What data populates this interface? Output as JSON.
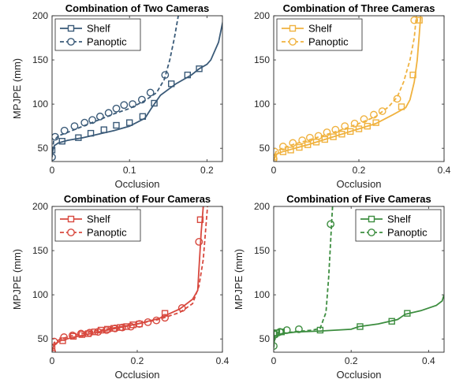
{
  "chart_data": [
    {
      "type": "line",
      "title": "Combination of Two Cameras",
      "xlabel": "Occlusion",
      "ylabel": "MPJPE (mm)",
      "xlim": [
        0,
        0.22
      ],
      "ylim": [
        35,
        200
      ],
      "xticks": [
        0,
        0.1,
        0.2
      ],
      "xtick_labels": [
        "0",
        "0.1",
        "0.2"
      ],
      "yticks": [
        50,
        100,
        150,
        200
      ],
      "ytick_labels": [
        "50",
        "100",
        "150",
        "200"
      ],
      "color": "#3a5a78",
      "legend": "top-left",
      "series": [
        {
          "name": "Shelf",
          "style": "solid",
          "marker": "square",
          "points": [
            [
              0,
              40
            ],
            [
              0.001,
              48
            ],
            [
              0.003,
              53
            ],
            [
              0.008,
              56
            ],
            [
              0.02,
              59
            ],
            [
              0.04,
              62
            ],
            [
              0.06,
              66
            ],
            [
              0.08,
              70
            ],
            [
              0.1,
              75
            ],
            [
              0.12,
              84
            ],
            [
              0.128,
              95
            ],
            [
              0.14,
              110
            ],
            [
              0.16,
              123
            ],
            [
              0.18,
              133
            ],
            [
              0.19,
              140
            ],
            [
              0.2,
              145
            ],
            [
              0.205,
              150
            ],
            [
              0.215,
              170
            ],
            [
              0.222,
              200
            ]
          ],
          "marker_points": [
            [
              0,
              48
            ],
            [
              0.013,
              58
            ],
            [
              0.034,
              62
            ],
            [
              0.05,
              67
            ],
            [
              0.067,
              71
            ],
            [
              0.083,
              76
            ],
            [
              0.1,
              79
            ],
            [
              0.117,
              86
            ],
            [
              0.132,
              101
            ],
            [
              0.154,
              123
            ],
            [
              0.175,
              133
            ],
            [
              0.19,
              140
            ]
          ]
        },
        {
          "name": "Panoptic",
          "style": "dashed",
          "marker": "circle",
          "points": [
            [
              0,
              40
            ],
            [
              0.002,
              58
            ],
            [
              0.008,
              64
            ],
            [
              0.02,
              68
            ],
            [
              0.04,
              75
            ],
            [
              0.06,
              82
            ],
            [
              0.08,
              89
            ],
            [
              0.1,
              95
            ],
            [
              0.12,
              104
            ],
            [
              0.135,
              113
            ],
            [
              0.145,
              128
            ],
            [
              0.152,
              150
            ],
            [
              0.158,
              175
            ],
            [
              0.163,
              200
            ]
          ],
          "marker_points": [
            [
              0,
              40
            ],
            [
              0.004,
              63
            ],
            [
              0.016,
              70
            ],
            [
              0.029,
              75
            ],
            [
              0.042,
              79
            ],
            [
              0.052,
              82
            ],
            [
              0.062,
              86
            ],
            [
              0.073,
              90
            ],
            [
              0.083,
              95
            ],
            [
              0.093,
              99
            ],
            [
              0.104,
              100
            ],
            [
              0.116,
              105
            ],
            [
              0.127,
              113
            ],
            [
              0.146,
              133
            ]
          ]
        }
      ]
    },
    {
      "type": "line",
      "title": "Combination of Three Cameras",
      "xlabel": "Occlusion",
      "ylabel": "",
      "xlim": [
        0,
        0.4
      ],
      "ylim": [
        35,
        200
      ],
      "xticks": [
        0,
        0.2,
        0.4
      ],
      "xtick_labels": [
        "0",
        "0.2",
        "0.4"
      ],
      "yticks": [
        50,
        100,
        150,
        200
      ],
      "ytick_labels": [
        "50",
        "100",
        "150",
        "200"
      ],
      "color": "#f0b23f",
      "legend": "top-left",
      "series": [
        {
          "name": "Shelf",
          "style": "solid",
          "marker": "square",
          "points": [
            [
              0,
              36
            ],
            [
              0.005,
              43
            ],
            [
              0.02,
              46
            ],
            [
              0.05,
              50
            ],
            [
              0.08,
              54
            ],
            [
              0.12,
              60
            ],
            [
              0.16,
              66
            ],
            [
              0.2,
              72
            ],
            [
              0.24,
              78
            ],
            [
              0.28,
              88
            ],
            [
              0.31,
              96
            ],
            [
              0.32,
              105
            ],
            [
              0.33,
              125
            ],
            [
              0.337,
              150
            ],
            [
              0.342,
              180
            ],
            [
              0.345,
              200
            ]
          ],
          "marker_points": [
            [
              0,
              40
            ],
            [
              0.022,
              46
            ],
            [
              0.04,
              48
            ],
            [
              0.06,
              51
            ],
            [
              0.08,
              54
            ],
            [
              0.1,
              57
            ],
            [
              0.12,
              60
            ],
            [
              0.14,
              63
            ],
            [
              0.16,
              66
            ],
            [
              0.18,
              69
            ],
            [
              0.2,
              72
            ],
            [
              0.22,
              75
            ],
            [
              0.24,
              79
            ],
            [
              0.3,
              97
            ],
            [
              0.327,
              133
            ],
            [
              0.342,
              195
            ]
          ]
        },
        {
          "name": "Panoptic",
          "style": "dashed",
          "marker": "circle",
          "points": [
            [
              0,
              36
            ],
            [
              0.005,
              46
            ],
            [
              0.02,
              50
            ],
            [
              0.05,
              55
            ],
            [
              0.08,
              59
            ],
            [
              0.12,
              65
            ],
            [
              0.16,
              71
            ],
            [
              0.2,
              78
            ],
            [
              0.24,
              86
            ],
            [
              0.27,
              97
            ],
            [
              0.29,
              108
            ],
            [
              0.305,
              125
            ],
            [
              0.32,
              150
            ],
            [
              0.33,
              175
            ],
            [
              0.335,
              200
            ]
          ],
          "marker_points": [
            [
              0,
              38
            ],
            [
              0.003,
              46
            ],
            [
              0.022,
              52
            ],
            [
              0.045,
              56
            ],
            [
              0.067,
              59
            ],
            [
              0.085,
              62
            ],
            [
              0.105,
              64
            ],
            [
              0.125,
              68
            ],
            [
              0.145,
              71
            ],
            [
              0.167,
              75
            ],
            [
              0.19,
              78
            ],
            [
              0.212,
              83
            ],
            [
              0.235,
              88
            ],
            [
              0.255,
              92
            ],
            [
              0.29,
              106
            ],
            [
              0.33,
              195
            ]
          ]
        }
      ]
    },
    {
      "type": "line",
      "title": "Combination of Four Cameras",
      "xlabel": "Occlusion",
      "ylabel": "MPJPE (mm)",
      "xlim": [
        0,
        0.4
      ],
      "ylim": [
        35,
        200
      ],
      "xticks": [
        0,
        0.2,
        0.4
      ],
      "xtick_labels": [
        "0",
        "0.2",
        "0.4"
      ],
      "yticks": [
        50,
        100,
        150,
        200
      ],
      "ytick_labels": [
        "50",
        "100",
        "150",
        "200"
      ],
      "color": "#d8493f",
      "legend": "top-left",
      "series": [
        {
          "name": "Shelf",
          "style": "solid",
          "marker": "square",
          "points": [
            [
              0,
              36
            ],
            [
              0.005,
              44
            ],
            [
              0.02,
              48
            ],
            [
              0.05,
              52
            ],
            [
              0.1,
              57
            ],
            [
              0.15,
              62
            ],
            [
              0.2,
              67
            ],
            [
              0.25,
              73
            ],
            [
              0.3,
              84
            ],
            [
              0.33,
              95
            ],
            [
              0.342,
              105
            ],
            [
              0.345,
              130
            ],
            [
              0.35,
              170
            ],
            [
              0.355,
              200
            ]
          ],
          "marker_points": [
            [
              0,
              40
            ],
            [
              0.025,
              48
            ],
            [
              0.05,
              53
            ],
            [
              0.07,
              55
            ],
            [
              0.085,
              56
            ],
            [
              0.1,
              58
            ],
            [
              0.115,
              60
            ],
            [
              0.13,
              61
            ],
            [
              0.145,
              62
            ],
            [
              0.16,
              63
            ],
            [
              0.175,
              64
            ],
            [
              0.19,
              66
            ],
            [
              0.205,
              67
            ],
            [
              0.265,
              79
            ],
            [
              0.348,
              185
            ]
          ]
        },
        {
          "name": "Panoptic",
          "style": "dashed",
          "marker": "circle",
          "points": [
            [
              0,
              36
            ],
            [
              0.005,
              46
            ],
            [
              0.02,
              50
            ],
            [
              0.05,
              54
            ],
            [
              0.1,
              59
            ],
            [
              0.15,
              63
            ],
            [
              0.2,
              67
            ],
            [
              0.25,
              72
            ],
            [
              0.3,
              80
            ],
            [
              0.33,
              90
            ],
            [
              0.345,
              110
            ],
            [
              0.355,
              140
            ],
            [
              0.36,
              170
            ],
            [
              0.365,
              200
            ]
          ],
          "marker_points": [
            [
              0,
              36
            ],
            [
              0.005,
              47
            ],
            [
              0.028,
              52
            ],
            [
              0.048,
              54
            ],
            [
              0.068,
              56
            ],
            [
              0.088,
              57
            ],
            [
              0.108,
              58
            ],
            [
              0.128,
              60
            ],
            [
              0.148,
              62
            ],
            [
              0.165,
              63
            ],
            [
              0.185,
              64
            ],
            [
              0.205,
              67
            ],
            [
              0.225,
              69
            ],
            [
              0.245,
              71
            ],
            [
              0.265,
              74
            ],
            [
              0.305,
              85
            ],
            [
              0.345,
              160
            ]
          ]
        }
      ]
    },
    {
      "type": "line",
      "title": "Combination of Five Cameras",
      "xlabel": "Occlusion",
      "ylabel": "MPJPE (mm)",
      "xlim": [
        0,
        0.44
      ],
      "ylim": [
        35,
        200
      ],
      "xticks": [
        0,
        0.2,
        0.4
      ],
      "xtick_labels": [
        "0",
        "0.2",
        "0.4"
      ],
      "yticks": [
        50,
        100,
        150,
        200
      ],
      "ytick_labels": [
        "50",
        "100",
        "150",
        "200"
      ],
      "color": "#3c8d3f",
      "legend": "top-right",
      "series": [
        {
          "name": "Shelf",
          "style": "solid",
          "marker": "square",
          "points": [
            [
              0,
              44
            ],
            [
              0.003,
              53
            ],
            [
              0.02,
              56
            ],
            [
              0.06,
              58
            ],
            [
              0.12,
              59
            ],
            [
              0.2,
              61
            ],
            [
              0.22,
              64
            ],
            [
              0.27,
              67
            ],
            [
              0.3,
              70
            ],
            [
              0.32,
              72
            ],
            [
              0.34,
              78
            ],
            [
              0.38,
              82
            ],
            [
              0.42,
              88
            ],
            [
              0.435,
              93
            ],
            [
              0.44,
              100
            ]
          ],
          "marker_points": [
            [
              0,
              56
            ],
            [
              0.008,
              57
            ],
            [
              0.02,
              58
            ],
            [
              0.12,
              60
            ],
            [
              0.223,
              64
            ],
            [
              0.305,
              70
            ],
            [
              0.345,
              79
            ]
          ]
        },
        {
          "name": "Panoptic",
          "style": "dashed",
          "marker": "circle",
          "points": [
            [
              0,
              40
            ],
            [
              0.003,
              52
            ],
            [
              0.02,
              56
            ],
            [
              0.05,
              58
            ],
            [
              0.1,
              60
            ],
            [
              0.12,
              62
            ],
            [
              0.135,
              80
            ],
            [
              0.142,
              120
            ],
            [
              0.147,
              160
            ],
            [
              0.15,
              185
            ],
            [
              0.152,
              200
            ]
          ],
          "marker_points": [
            [
              0,
              42
            ],
            [
              0.004,
              55
            ],
            [
              0.016,
              58
            ],
            [
              0.034,
              60
            ],
            [
              0.065,
              61
            ],
            [
              0.147,
              180
            ]
          ]
        }
      ]
    }
  ]
}
